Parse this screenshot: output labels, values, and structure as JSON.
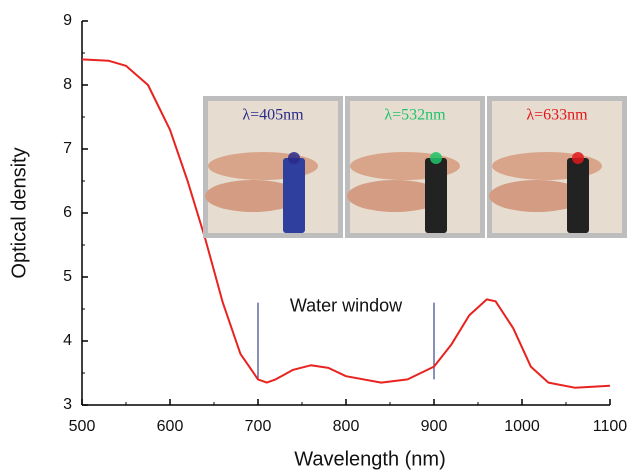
{
  "chart_data": {
    "type": "line",
    "x_label": "Wavelength (nm)",
    "y_label": "Optical density",
    "x": [
      500,
      530,
      550,
      575,
      600,
      620,
      640,
      660,
      680,
      700,
      710,
      720,
      740,
      760,
      780,
      800,
      840,
      870,
      900,
      920,
      940,
      960,
      970,
      990,
      1010,
      1030,
      1060,
      1100
    ],
    "series": [
      {
        "color": "#e8231f",
        "values": [
          8.4,
          8.38,
          8.3,
          8.0,
          7.3,
          6.5,
          5.6,
          4.6,
          3.8,
          3.4,
          3.35,
          3.4,
          3.55,
          3.62,
          3.58,
          3.45,
          3.35,
          3.4,
          3.6,
          3.95,
          4.4,
          4.65,
          4.62,
          4.2,
          3.6,
          3.35,
          3.27,
          3.3
        ]
      }
    ],
    "xlim": [
      500,
      1100
    ],
    "xticks": [
      500,
      600,
      700,
      800,
      900,
      1000,
      1100
    ],
    "ylim": [
      3,
      9
    ],
    "yticks": [
      3,
      4,
      5,
      6,
      7,
      8,
      9
    ],
    "annotation": {
      "text": "Water window",
      "x": [
        700,
        900
      ],
      "y_range": [
        3.4,
        4.6
      ],
      "color": "#3a4a8a"
    },
    "insets": [
      {
        "label": "λ=405nm",
        "color": "#2a2a8a"
      },
      {
        "label": "λ=532nm",
        "color": "#1fc46a"
      },
      {
        "label": "λ=633nm",
        "color": "#e0181c"
      }
    ]
  }
}
